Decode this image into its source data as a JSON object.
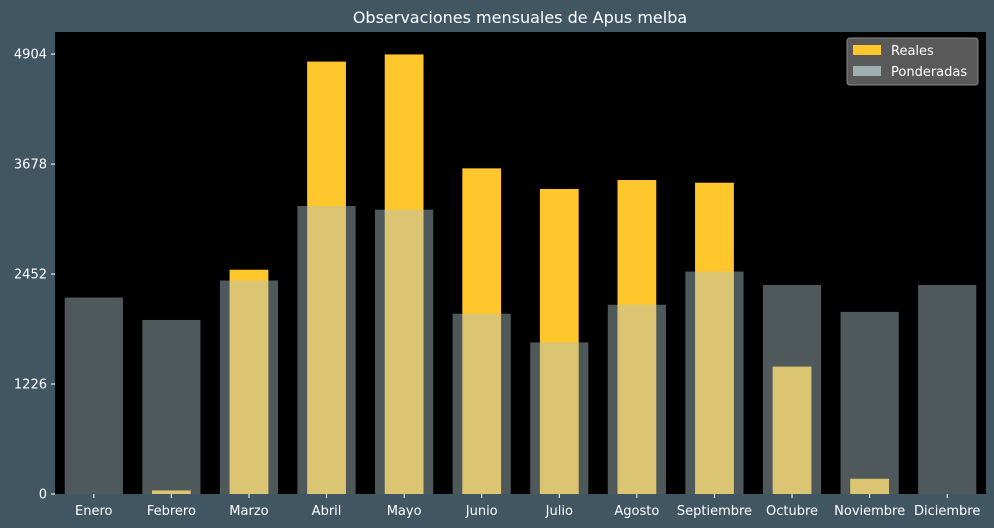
{
  "chart_data": {
    "type": "bar",
    "title": "Observaciones mensuales de Apus melba",
    "xlabel": "",
    "ylabel": "",
    "categories": [
      "Enero",
      "Febrero",
      "Marzo",
      "Abril",
      "Mayo",
      "Junio",
      "Julio",
      "Agosto",
      "Septiembre",
      "Octubre",
      "Noviembre",
      "Diciembre"
    ],
    "series": [
      {
        "name": "Reales",
        "color": "#ffc72c",
        "values": [
          0,
          40,
          2500,
          4820,
          4900,
          3630,
          3400,
          3500,
          3470,
          1420,
          170,
          0
        ]
      },
      {
        "name": "Ponderadas",
        "color": "#b0c4c8",
        "opacity": 0.45,
        "values": [
          2190,
          1940,
          2380,
          3210,
          3170,
          2010,
          1690,
          2110,
          2480,
          2330,
          2030,
          2330
        ]
      }
    ],
    "yticks": [
      0,
      1226,
      2452,
      3678,
      4904
    ],
    "ylim": [
      0,
      5150
    ],
    "grid": false,
    "legend": "top-right",
    "colors": {
      "background": "#415663",
      "plot_background": "#000000",
      "overlap": "#d6cf88"
    }
  }
}
